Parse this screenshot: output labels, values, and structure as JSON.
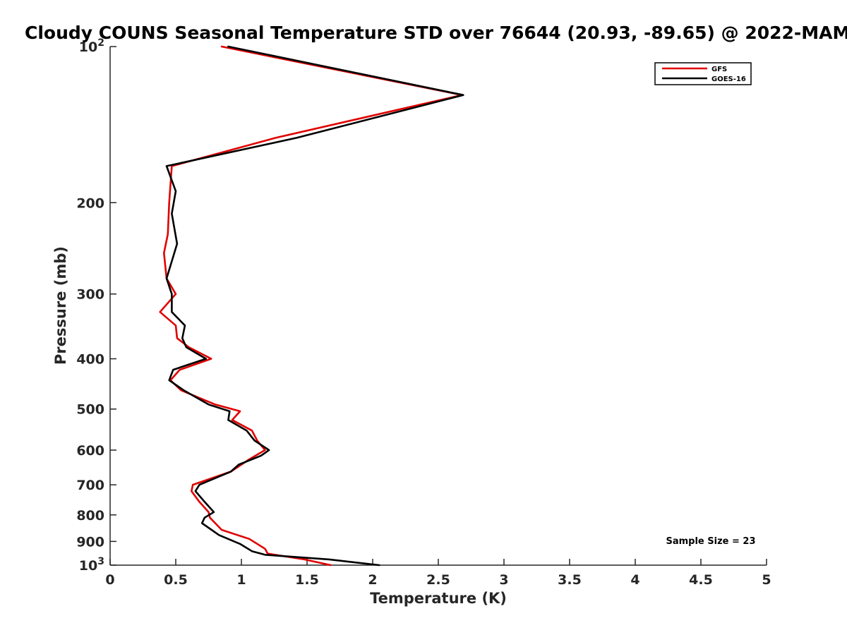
{
  "chart_data": {
    "type": "line",
    "title": "Cloudy COUNS Seasonal Temperature STD over 76644 (20.93, -89.65) @ 2022-MAM",
    "xlabel": "Temperature (K)",
    "ylabel": "Pressure (mb)",
    "xlim": [
      0,
      5
    ],
    "ylim": [
      100,
      1000
    ],
    "yscale": "log",
    "y_reversed": true,
    "grid": false,
    "legend_position": "top-right",
    "x_ticks": [
      0,
      0.5,
      1,
      1.5,
      2,
      2.5,
      3,
      3.5,
      4,
      4.5,
      5
    ],
    "x_tick_labels": [
      "0",
      "0.5",
      "1",
      "1.5",
      "2",
      "2.5",
      "3",
      "3.5",
      "4",
      "4.5",
      "5"
    ],
    "y_ticks": [
      100,
      200,
      300,
      400,
      500,
      600,
      700,
      800,
      900,
      1000
    ],
    "y_tick_labels": [
      {
        "base": "10",
        "exp": "2"
      },
      {
        "base": "200",
        "exp": ""
      },
      {
        "base": "300",
        "exp": ""
      },
      {
        "base": "400",
        "exp": ""
      },
      {
        "base": "500",
        "exp": ""
      },
      {
        "base": "600",
        "exp": ""
      },
      {
        "base": "700",
        "exp": ""
      },
      {
        "base": "800",
        "exp": ""
      },
      {
        "base": "900",
        "exp": ""
      },
      {
        "base": "10",
        "exp": "3"
      }
    ],
    "annotation": "Sample Size = 23",
    "series": [
      {
        "name": "GFS",
        "color": "#e00000",
        "points": [
          [
            0.85,
            100
          ],
          [
            2.68,
            124
          ],
          [
            1.26,
            150
          ],
          [
            0.47,
            170
          ],
          [
            0.45,
            200
          ],
          [
            0.44,
            230
          ],
          [
            0.41,
            250
          ],
          [
            0.43,
            280
          ],
          [
            0.5,
            300
          ],
          [
            0.38,
            325
          ],
          [
            0.5,
            345
          ],
          [
            0.51,
            365
          ],
          [
            0.6,
            380
          ],
          [
            0.77,
            400
          ],
          [
            0.53,
            420
          ],
          [
            0.46,
            440
          ],
          [
            0.54,
            460
          ],
          [
            0.8,
            490
          ],
          [
            0.99,
            505
          ],
          [
            0.93,
            525
          ],
          [
            1.08,
            550
          ],
          [
            1.12,
            575
          ],
          [
            1.18,
            600
          ],
          [
            1.06,
            625
          ],
          [
            0.92,
            660
          ],
          [
            0.63,
            700
          ],
          [
            0.62,
            720
          ],
          [
            0.68,
            755
          ],
          [
            0.75,
            790
          ],
          [
            0.76,
            810
          ],
          [
            0.85,
            855
          ],
          [
            1.06,
            890
          ],
          [
            1.18,
            930
          ],
          [
            1.2,
            950
          ],
          [
            1.48,
            975
          ],
          [
            1.68,
            1000
          ]
        ]
      },
      {
        "name": "GOES-16",
        "color": "#000000",
        "points": [
          [
            0.9,
            100
          ],
          [
            2.69,
            124
          ],
          [
            1.42,
            150
          ],
          [
            0.43,
            170
          ],
          [
            0.5,
            190
          ],
          [
            0.47,
            210
          ],
          [
            0.51,
            240
          ],
          [
            0.43,
            280
          ],
          [
            0.47,
            300
          ],
          [
            0.47,
            325
          ],
          [
            0.57,
            345
          ],
          [
            0.55,
            365
          ],
          [
            0.58,
            380
          ],
          [
            0.73,
            400
          ],
          [
            0.48,
            420
          ],
          [
            0.45,
            440
          ],
          [
            0.56,
            460
          ],
          [
            0.75,
            490
          ],
          [
            0.91,
            505
          ],
          [
            0.9,
            525
          ],
          [
            1.04,
            550
          ],
          [
            1.1,
            575
          ],
          [
            1.21,
            600
          ],
          [
            1.15,
            615
          ],
          [
            0.98,
            640
          ],
          [
            0.92,
            660
          ],
          [
            0.68,
            700
          ],
          [
            0.65,
            720
          ],
          [
            0.72,
            755
          ],
          [
            0.79,
            790
          ],
          [
            0.72,
            810
          ],
          [
            0.7,
            830
          ],
          [
            0.83,
            875
          ],
          [
            0.99,
            910
          ],
          [
            1.08,
            940
          ],
          [
            1.18,
            955
          ],
          [
            1.67,
            975
          ],
          [
            2.05,
            1000
          ]
        ]
      }
    ]
  }
}
